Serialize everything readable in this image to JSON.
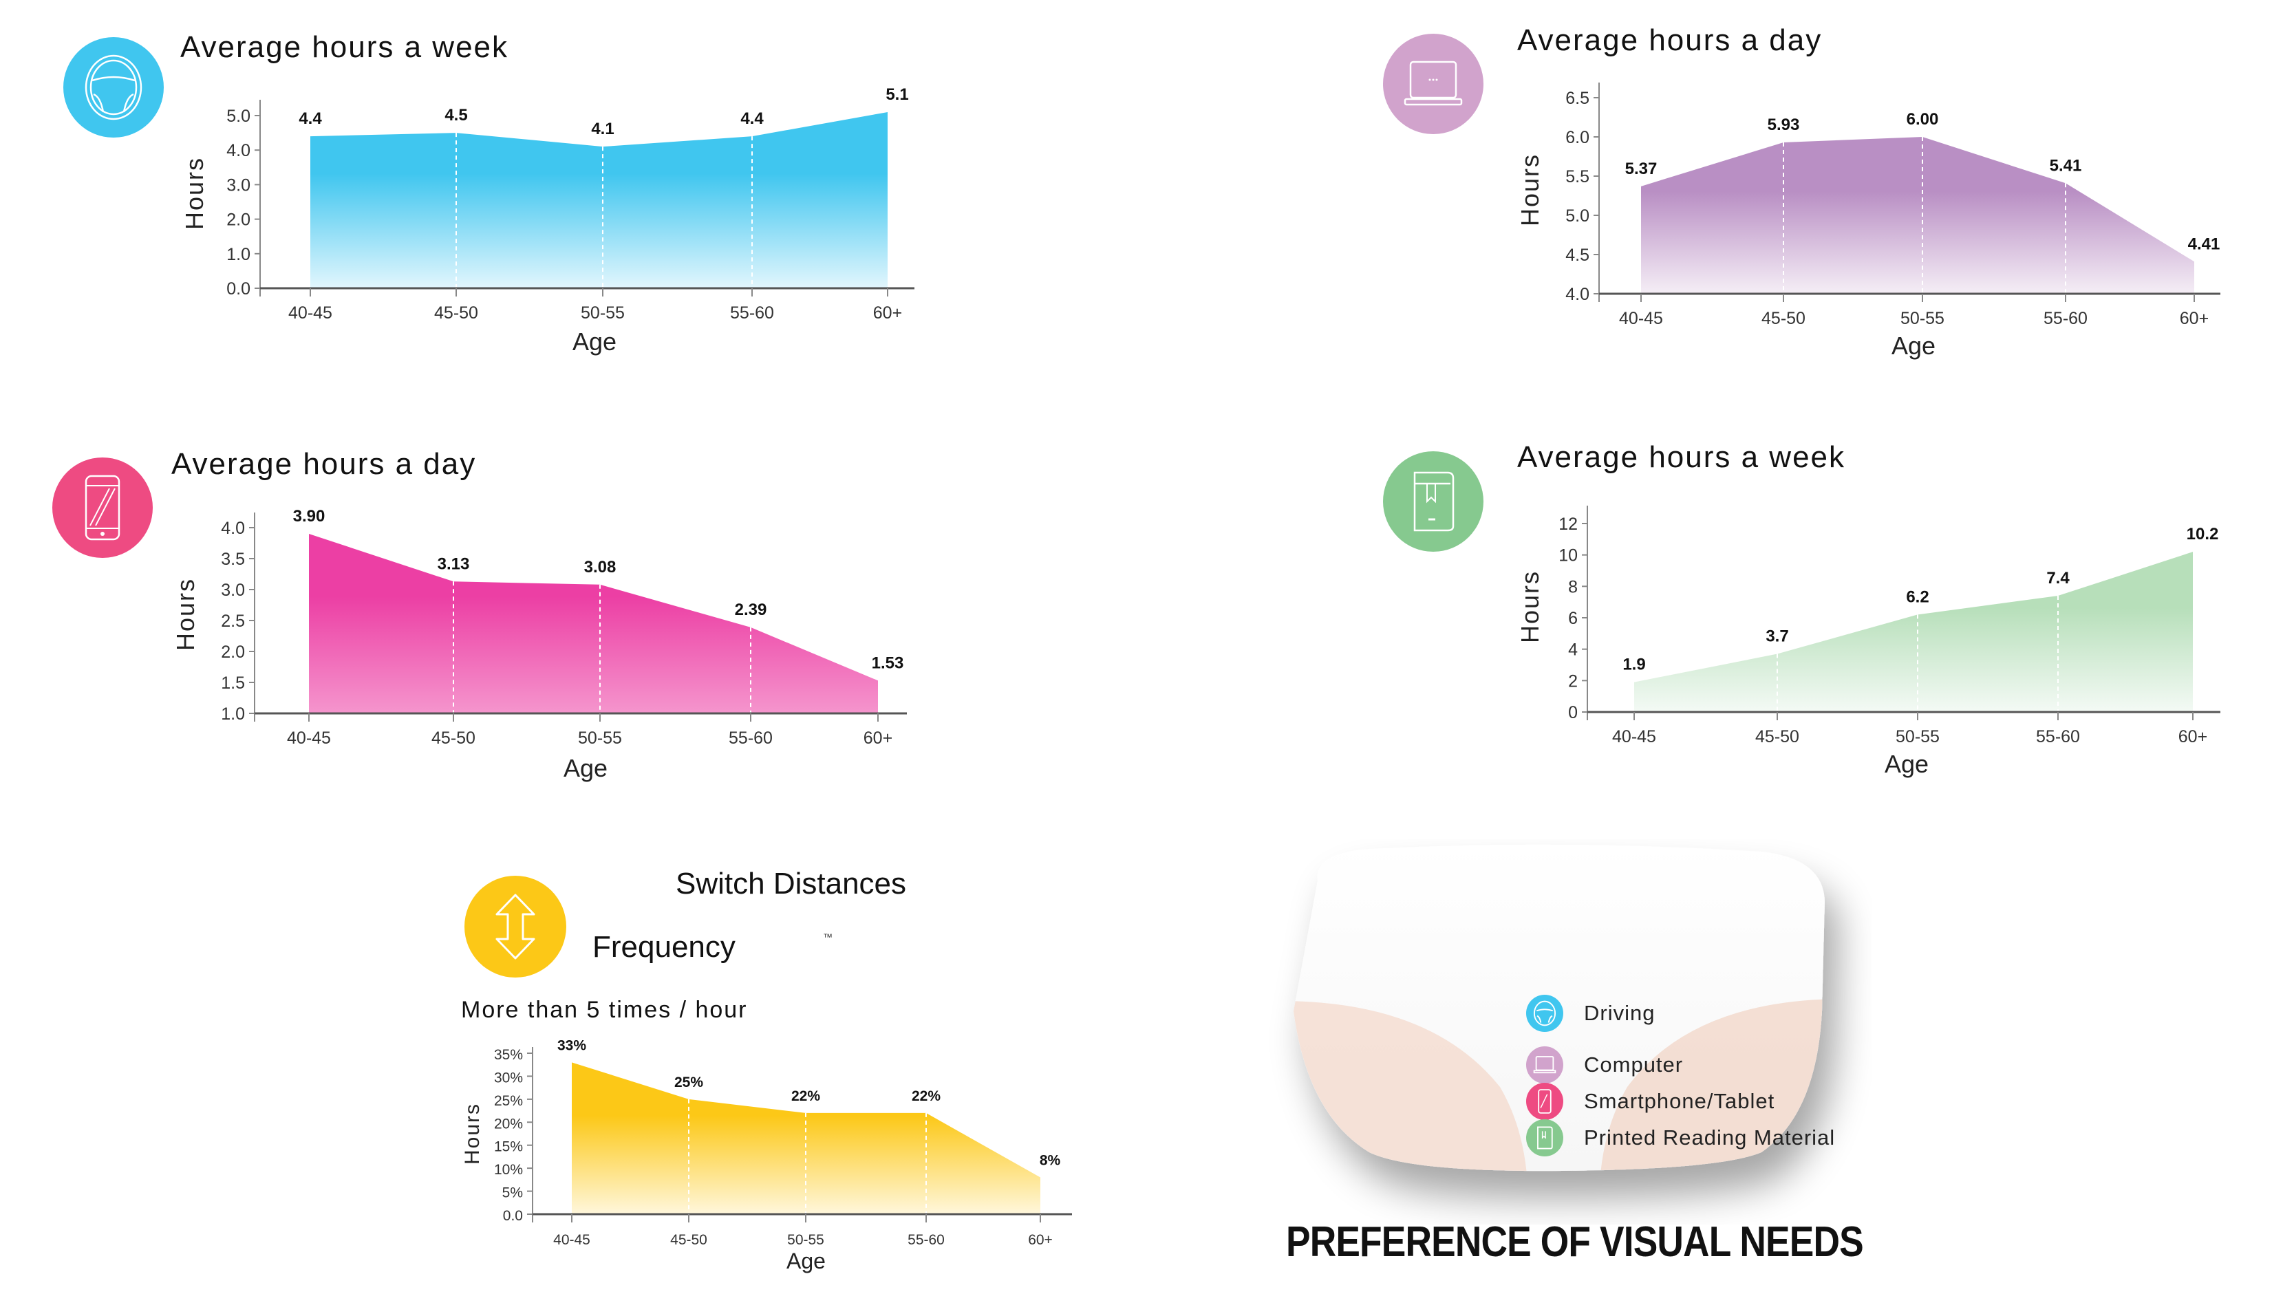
{
  "colors": {
    "driving": "#40c6ef",
    "computer": "#d1a3cc",
    "smartphone": "#ee4b82",
    "reading": "#86c98f",
    "switch": "#fcc817"
  },
  "charts": {
    "driving": {
      "title": "Average hours a week",
      "icon": "steering-wheel-icon",
      "ylabel": "Hours",
      "xlabel": "Age"
    },
    "computer": {
      "title": "Average hours a day",
      "icon": "laptop-icon",
      "ylabel": "Hours",
      "xlabel": "Age"
    },
    "smartphone": {
      "title": "Average hours a day",
      "icon": "smartphone-icon",
      "ylabel": "Hours",
      "xlabel": "Age"
    },
    "reading": {
      "title": "Average hours a week",
      "icon": "book-icon",
      "ylabel": "Hours",
      "xlabel": "Age"
    },
    "switch": {
      "title": "Switch Distances",
      "subtitle": "Frequency",
      "trademark": "™",
      "caption": "More than 5 times / hour",
      "icon": "vertical-arrows-icon",
      "ylabel": "Hours",
      "xlabel": "Age"
    }
  },
  "legend": {
    "title": "PREFERENCE OF VISUAL NEEDS",
    "items": [
      {
        "label": "Driving",
        "icon": "steering-wheel-icon"
      },
      {
        "label": "Computer",
        "icon": "laptop-icon"
      },
      {
        "label": "Smartphone/Tablet",
        "icon": "smartphone-icon"
      },
      {
        "label": "Printed Reading Material",
        "icon": "book-icon"
      }
    ]
  },
  "chart_data": [
    {
      "id": "driving",
      "type": "area",
      "title": "Average hours a week",
      "xlabel": "Age",
      "ylabel": "Hours",
      "categories": [
        "40-45",
        "45-50",
        "50-55",
        "55-60",
        "60+"
      ],
      "values": [
        4.4,
        4.5,
        4.1,
        4.4,
        5.1
      ],
      "value_labels": [
        "4.4",
        "4.5",
        "4.1",
        "4.4",
        "5.1"
      ],
      "ylim": [
        0,
        5.5
      ],
      "yticks": [
        "0.0",
        "1.0",
        "2.0",
        "3.0",
        "4.0",
        "5.0"
      ],
      "color": "#40c6ef",
      "grid": false
    },
    {
      "id": "computer",
      "type": "area",
      "title": "Average hours a day",
      "xlabel": "Age",
      "ylabel": "Hours",
      "categories": [
        "40-45",
        "45-50",
        "50-55",
        "55-60",
        "60+"
      ],
      "values": [
        5.37,
        5.93,
        6.0,
        5.41,
        4.41
      ],
      "value_labels": [
        "5.37",
        "5.93",
        "6.00",
        "5.41",
        "4.41"
      ],
      "ylim": [
        4.0,
        6.6
      ],
      "yticks": [
        "4.0",
        "4.5",
        "5.0",
        "5.5",
        "6.0",
        "6.5"
      ],
      "color": "#b98fc4",
      "grid": false
    },
    {
      "id": "smartphone",
      "type": "area",
      "title": "Average hours a day",
      "xlabel": "Age",
      "ylabel": "Hours",
      "categories": [
        "40-45",
        "45-50",
        "50-55",
        "55-60",
        "60+"
      ],
      "values": [
        3.9,
        3.13,
        3.08,
        2.39,
        1.53
      ],
      "value_labels": [
        "3.90",
        "3.13",
        "3.08",
        "2.39",
        "1.53"
      ],
      "ylim": [
        1.0,
        4.2
      ],
      "yticks": [
        "1.0",
        "1.5",
        "2.0",
        "2.5",
        "3.0",
        "3.5",
        "4.0"
      ],
      "color": "#ec3fa4",
      "grid": false
    },
    {
      "id": "reading",
      "type": "area",
      "title": "Average hours a week",
      "xlabel": "Age",
      "ylabel": "Hours",
      "categories": [
        "40-45",
        "45-50",
        "50-55",
        "55-60",
        "60+"
      ],
      "values": [
        1.9,
        3.7,
        6.2,
        7.4,
        10.2
      ],
      "value_labels": [
        "1.9",
        "3.7",
        "6.2",
        "7.4",
        "10.2"
      ],
      "ylim": [
        0,
        13
      ],
      "yticks": [
        "0",
        "2",
        "4",
        "6",
        "8",
        "10",
        "12"
      ],
      "color": "#b7dfba",
      "grid": false
    },
    {
      "id": "switch",
      "type": "area",
      "title": "Switch Distances Frequency — More than 5 times / hour",
      "xlabel": "Age",
      "ylabel": "Hours",
      "categories": [
        "40-45",
        "45-50",
        "50-55",
        "55-60",
        "60+"
      ],
      "values": [
        33,
        25,
        22,
        22,
        8
      ],
      "value_labels": [
        "33%",
        "25%",
        "22%",
        "22%",
        "8%"
      ],
      "ylim": [
        0,
        36
      ],
      "yticks": [
        "0.0",
        "5%",
        "10%",
        "15%",
        "20%",
        "25%",
        "30%",
        "35%"
      ],
      "color": "#fcc817",
      "grid": false
    }
  ]
}
